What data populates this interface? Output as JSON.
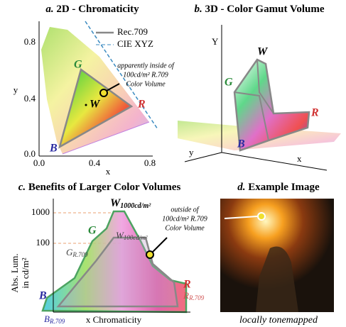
{
  "panel_a": {
    "label": "a.",
    "title": "2D - Chromaticity",
    "legend": [
      "Rec.709",
      "CIE XYZ"
    ],
    "x_label": "x",
    "y_label": "y",
    "xticks": [
      "0.0",
      "0.4",
      "0.8"
    ],
    "yticks": [
      "0.0",
      "0.4",
      "0.8"
    ],
    "vertices": {
      "G": "G",
      "W": "W",
      "R": "R",
      "B": "B"
    },
    "annotation": [
      "apparently inside of",
      "100cd/m² R.709",
      "Color Volume"
    ]
  },
  "panel_b": {
    "label": "b.",
    "title": "3D - Color Gamut Volume",
    "axes": {
      "Y": "Y",
      "x": "x",
      "y": "y"
    },
    "vertices": {
      "W": "W",
      "G": "G",
      "R": "R",
      "B": "B"
    }
  },
  "panel_c": {
    "label": "c.",
    "title": "Benefits of Larger Color Volumes",
    "yticks": [
      "1000",
      "100"
    ],
    "y_label": [
      "Abs. Lum.",
      "in cd/m²"
    ],
    "x_label": "x Chromaticity",
    "vertices": {
      "W_high": [
        "W",
        "1000cd/m²"
      ],
      "W_low": [
        "W",
        "100cd/m²"
      ],
      "G": "G",
      "G_709": [
        "G",
        "R.709"
      ],
      "R": "R",
      "R_709": [
        "R",
        "R.709"
      ],
      "B": "B",
      "B_709": [
        "B",
        "R.709"
      ]
    },
    "annotation": [
      "outside of",
      "100cd/m² R.709",
      "Color Volume"
    ]
  },
  "panel_d": {
    "label": "d.",
    "title": "Example Image",
    "caption": "locally tonemapped"
  }
}
